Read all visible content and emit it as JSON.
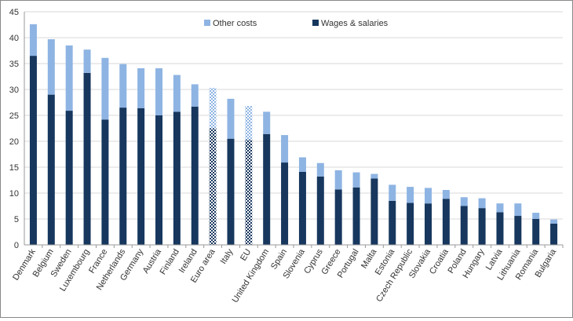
{
  "chart_data": {
    "type": "bar",
    "stacked": true,
    "title": "",
    "xlabel": "",
    "ylabel": "",
    "ylim": [
      0,
      45
    ],
    "yticks": [
      0,
      5,
      10,
      15,
      20,
      25,
      30,
      35,
      40,
      45
    ],
    "grid": true,
    "legend_position": "top",
    "categories": [
      "Denmark",
      "Belgium",
      "Sweden",
      "Luxembourg",
      "France",
      "Netherlands",
      "Germany",
      "Austria",
      "Finland",
      "Ireland",
      "Euro area",
      "Italy",
      "EU",
      "United Kingdom",
      "Spain",
      "Slovenia",
      "Cyprus",
      "Greece",
      "Portugal",
      "Malta",
      "Estonia",
      "Czech Republic",
      "Slovakia",
      "Croatia",
      "Poland",
      "Hungary",
      "Latvia",
      "Lithuania",
      "Romania",
      "Bulgaria"
    ],
    "patterned_categories": [
      "Euro area",
      "EU"
    ],
    "series": [
      {
        "name": "Wages & salaries",
        "color": "#17375e",
        "values": [
          36.5,
          29.0,
          25.9,
          33.2,
          24.2,
          26.5,
          26.4,
          25.0,
          25.7,
          26.7,
          22.5,
          20.5,
          20.3,
          21.4,
          15.9,
          14.1,
          13.2,
          10.7,
          11.1,
          12.8,
          8.5,
          8.1,
          8.0,
          8.9,
          7.5,
          7.1,
          6.3,
          5.6,
          5.0,
          4.1
        ]
      },
      {
        "name": "Other costs",
        "color": "#8eb4e3",
        "values": [
          6.1,
          10.7,
          12.6,
          4.5,
          11.9,
          8.4,
          7.7,
          9.1,
          7.1,
          4.3,
          7.8,
          7.7,
          6.5,
          4.3,
          5.3,
          2.8,
          2.6,
          3.7,
          2.9,
          0.9,
          3.1,
          3.1,
          3.0,
          1.7,
          1.7,
          1.9,
          1.7,
          2.4,
          1.2,
          0.8
        ]
      }
    ]
  }
}
